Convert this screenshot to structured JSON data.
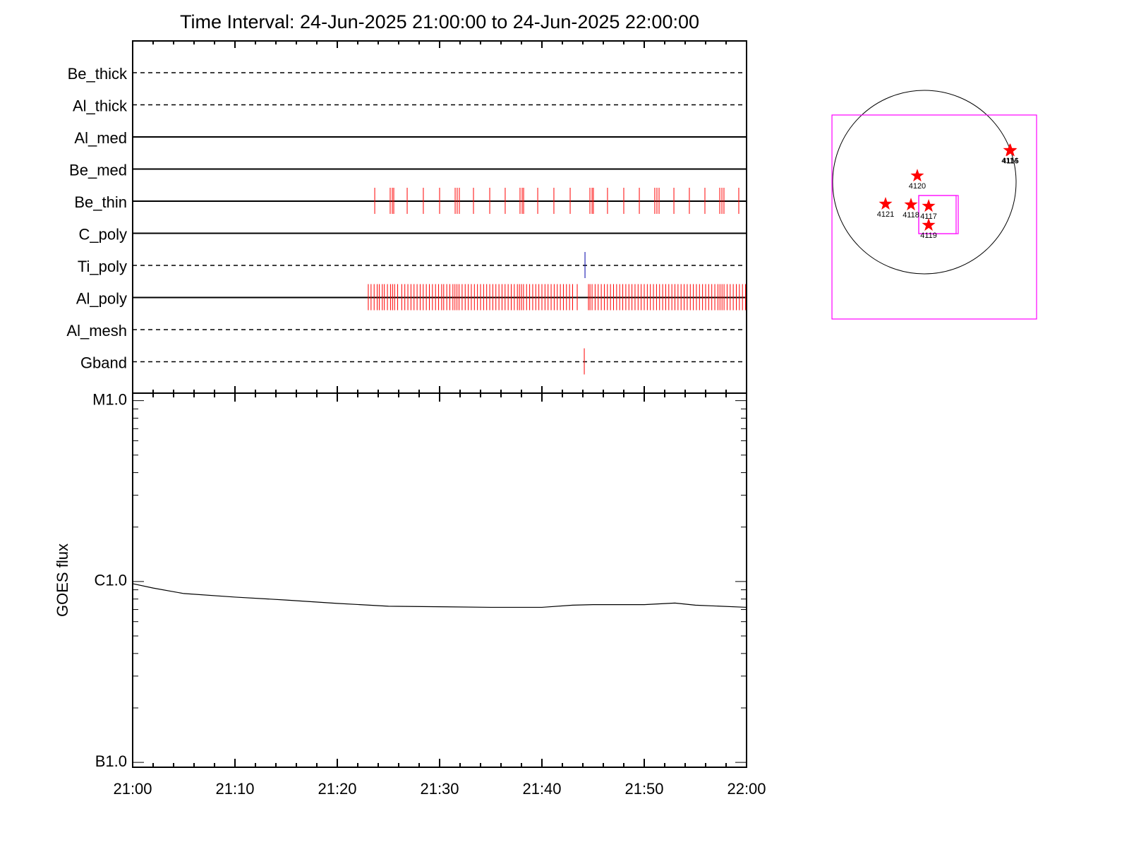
{
  "title": "Time Interval: 24-Jun-2025 21:00:00 to 24-Jun-2025 22:00:00",
  "chart_data": [
    {
      "type": "timeline",
      "channels": [
        {
          "name": "Be_thick",
          "style": "dashed",
          "color": "#ff0000",
          "events": []
        },
        {
          "name": "Al_thick",
          "style": "dashed",
          "color": "#ff0000",
          "events": []
        },
        {
          "name": "Al_med",
          "style": "solid",
          "color": "#ff0000",
          "events": []
        },
        {
          "name": "Be_med",
          "style": "solid",
          "color": "#ff0000",
          "events": []
        },
        {
          "name": "Be_thin",
          "style": "solid",
          "color": "#ff0000",
          "events": [
            23.66,
            25.17,
            25.38,
            25.52,
            26.83,
            28.41,
            30.0,
            31.52,
            31.72,
            31.93,
            33.31,
            34.9,
            36.41,
            37.86,
            38.07,
            38.21,
            39.59,
            41.17,
            42.76,
            44.69,
            44.9,
            45.03,
            46.41,
            48.0,
            49.52,
            51.03,
            51.24,
            51.45,
            52.9,
            54.41,
            55.93,
            57.38,
            57.59,
            57.79,
            59.24
          ]
        },
        {
          "name": "C_poly",
          "style": "solid",
          "color": "#ff0000",
          "events": []
        },
        {
          "name": "Ti_poly",
          "style": "dashed",
          "color": "#0000aa",
          "events": [
            44.21
          ]
        },
        {
          "name": "Al_poly",
          "style": "solid",
          "color": "#ff0000",
          "events": [
            23.03,
            23.3,
            23.6,
            23.9,
            24.1,
            24.4,
            24.6,
            24.9,
            25.2,
            25.4,
            25.6,
            25.9,
            26.3,
            26.6,
            26.9,
            27.2,
            27.5,
            27.8,
            28.1,
            28.4,
            28.7,
            29.0,
            29.3,
            29.6,
            29.9,
            30.2,
            30.4,
            30.7,
            31.0,
            31.3,
            31.5,
            31.7,
            31.9,
            32.2,
            32.5,
            32.8,
            33.1,
            33.4,
            33.7,
            34.0,
            34.3,
            34.6,
            34.9,
            35.2,
            35.5,
            35.8,
            36.1,
            36.4,
            36.7,
            37.0,
            37.3,
            37.6,
            37.8,
            38.0,
            38.2,
            38.5,
            38.8,
            39.1,
            39.4,
            39.7,
            40.0,
            40.3,
            40.6,
            40.9,
            41.2,
            41.5,
            41.8,
            42.1,
            42.4,
            42.7,
            43.0,
            43.45,
            44.55,
            44.7,
            44.9,
            45.2,
            45.5,
            45.8,
            46.1,
            46.4,
            46.7,
            47.0,
            47.3,
            47.6,
            47.9,
            48.2,
            48.5,
            48.8,
            49.1,
            49.4,
            49.7,
            50.0,
            50.3,
            50.6,
            50.9,
            51.2,
            51.5,
            51.8,
            52.1,
            52.4,
            52.7,
            53.0,
            53.3,
            53.6,
            53.9,
            54.2,
            54.5,
            54.8,
            55.1,
            55.4,
            55.7,
            56.0,
            56.3,
            56.6,
            56.9,
            57.2,
            57.4,
            57.6,
            57.8,
            58.1,
            58.4,
            58.7,
            59.0,
            59.3,
            59.6,
            59.9
          ]
        },
        {
          "name": "Al_mesh",
          "style": "dashed",
          "color": "#ff0000",
          "events": []
        },
        {
          "name": "Gband",
          "style": "dashed",
          "color": "#ff0000",
          "events": [
            44.14
          ]
        }
      ]
    },
    {
      "type": "line",
      "ylabel": "GOES flux",
      "log_y": true,
      "xlim": [
        0,
        60
      ],
      "xticks": [
        {
          "value": 0,
          "label": "21:00"
        },
        {
          "value": 10,
          "label": "21:10"
        },
        {
          "value": 20,
          "label": "21:20"
        },
        {
          "value": 30,
          "label": "21:30"
        },
        {
          "value": 40,
          "label": "21:40"
        },
        {
          "value": 50,
          "label": "21:50"
        },
        {
          "value": 60,
          "label": "22:00"
        }
      ],
      "minor_xticks": [
        2,
        4,
        6,
        8,
        12,
        14,
        16,
        18,
        22,
        24,
        26,
        28,
        32,
        34,
        36,
        38,
        42,
        44,
        46,
        48,
        52,
        54,
        56,
        58
      ],
      "ylim": [
        9.4e-08,
        1.1e-05
      ],
      "yticks": [
        {
          "value": 1e-07,
          "label": "B1.0"
        },
        {
          "value": 1e-06,
          "label": "C1.0"
        },
        {
          "value": 1e-05,
          "label": "M1.0"
        }
      ],
      "minor_yticks": [
        2e-07,
        3e-07,
        4e-07,
        5e-07,
        6e-07,
        7e-07,
        8e-07,
        9e-07,
        2e-06,
        3e-06,
        4e-06,
        5e-06,
        6e-06,
        7e-06,
        8e-06,
        9e-06
      ],
      "color": "#000000",
      "x": [
        0,
        2,
        5,
        10,
        15,
        20,
        25,
        30,
        35,
        40,
        43,
        45,
        50,
        53,
        55,
        60
      ],
      "values": [
        9.73e-07,
        9.2e-07,
        8.58e-07,
        8.2e-07,
        7.9e-07,
        7.57e-07,
        7.3e-07,
        7.25e-07,
        7.2e-07,
        7.2e-07,
        7.4e-07,
        7.45e-07,
        7.45e-07,
        7.6e-07,
        7.4e-07,
        7.2e-07
      ]
    },
    {
      "type": "sunmap",
      "radius": 945,
      "box_color": "#ff00ff",
      "star_color": "#ff0000",
      "fov_boxes": [
        {
          "x": [
            -952,
            1156
          ],
          "y": [
            -1410,
            691
          ]
        },
        {
          "x": [
            -58,
            349
          ],
          "y": [
            -531,
            -138
          ]
        },
        {
          "x": [
            -58,
            327
          ],
          "y": [
            -531,
            -138
          ]
        }
      ],
      "sources": [
        {
          "label": "4120",
          "x": -73,
          "y": 65
        },
        {
          "label": "4121",
          "x": -400,
          "y": -225
        },
        {
          "label": "4118",
          "x": -138,
          "y": -233
        },
        {
          "label": "4117",
          "x": 44,
          "y": -247
        },
        {
          "label": "4119",
          "x": 44,
          "y": -443
        },
        {
          "label": "4114",
          "x": 880,
          "y": 327
        },
        {
          "label": "4115",
          "x": 887,
          "y": 324
        }
      ]
    }
  ]
}
